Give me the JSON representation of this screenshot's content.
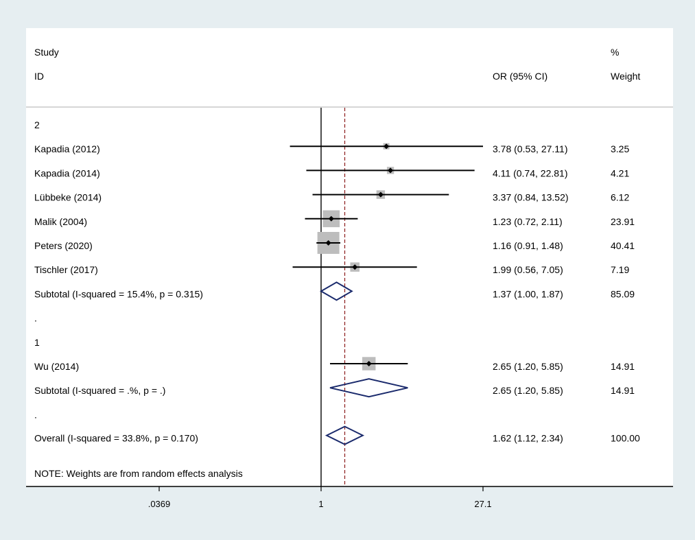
{
  "chart_data": {
    "type": "forest",
    "measure": "OR",
    "header": {
      "study_label_top": "Study",
      "study_label_bottom": "ID",
      "effect_label": "OR (95% CI)",
      "weight_label_top": "%",
      "weight_label_bottom": "Weight"
    },
    "x_scale": "log",
    "x_ticks": [
      {
        "value": 0.0369,
        "label": ".0369"
      },
      {
        "value": 1,
        "label": "1"
      },
      {
        "value": 27.1,
        "label": "27.1"
      }
    ],
    "null_line": 1,
    "overall_line": 1.62,
    "groups": [
      {
        "label": "2",
        "studies": [
          {
            "id": "Kapadia (2012)",
            "or": 3.78,
            "lo": 0.53,
            "hi": 27.11,
            "ci_text": "3.78 (0.53, 27.11)",
            "weight": "3.25",
            "arrow_right": true
          },
          {
            "id": "Kapadia (2014)",
            "or": 4.11,
            "lo": 0.74,
            "hi": 22.81,
            "ci_text": "4.11 (0.74, 22.81)",
            "weight": "4.21"
          },
          {
            "id": "Lübbeke (2014)",
            "or": 3.37,
            "lo": 0.84,
            "hi": 13.52,
            "ci_text": "3.37 (0.84, 13.52)",
            "weight": "6.12"
          },
          {
            "id": "Malik (2004)",
            "or": 1.23,
            "lo": 0.72,
            "hi": 2.11,
            "ci_text": "1.23 (0.72, 2.11)",
            "weight": "23.91"
          },
          {
            "id": "Peters (2020)",
            "or": 1.16,
            "lo": 0.91,
            "hi": 1.48,
            "ci_text": "1.16 (0.91, 1.48)",
            "weight": "40.41"
          },
          {
            "id": "Tischler (2017)",
            "or": 1.99,
            "lo": 0.56,
            "hi": 7.05,
            "ci_text": "1.99 (0.56, 7.05)",
            "weight": "7.19"
          }
        ],
        "subtotal": {
          "label": "Subtotal  (I-squared = 15.4%, p = 0.315)",
          "or": 1.37,
          "lo": 1.0,
          "hi": 1.87,
          "ci_text": "1.37 (1.00, 1.87)",
          "weight": "85.09"
        }
      },
      {
        "label": "1",
        "studies": [
          {
            "id": "Wu (2014)",
            "or": 2.65,
            "lo": 1.2,
            "hi": 5.85,
            "ci_text": "2.65 (1.20, 5.85)",
            "weight": "14.91"
          }
        ],
        "subtotal": {
          "label": "Subtotal  (I-squared = .%, p = .)",
          "or": 2.65,
          "lo": 1.2,
          "hi": 5.85,
          "ci_text": "2.65 (1.20, 5.85)",
          "weight": "14.91"
        }
      }
    ],
    "separator": ".",
    "overall": {
      "label": "Overall  (I-squared = 33.8%, p = 0.170)",
      "or": 1.62,
      "lo": 1.12,
      "hi": 2.34,
      "ci_text": "1.62 (1.12, 2.34)",
      "weight": "100.00"
    },
    "note": "NOTE: Weights are from random effects analysis",
    "colors": {
      "background": "#e6eef1",
      "panel": "#ffffff",
      "weight_box": "#bdbdbd",
      "diamond": "#1a2a6c",
      "overall_line": "#8b1a1a",
      "line": "#000000"
    }
  }
}
